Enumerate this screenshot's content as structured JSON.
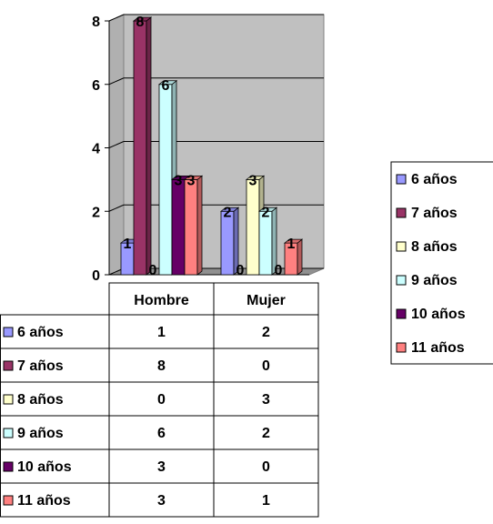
{
  "chart_data": {
    "type": "bar",
    "categories": [
      "Hombre",
      "Mujer"
    ],
    "series": [
      {
        "name": "6 años",
        "values": [
          1,
          2
        ],
        "color": "#9999FF"
      },
      {
        "name": "7 años",
        "values": [
          8,
          0
        ],
        "color": "#993366"
      },
      {
        "name": "8 años",
        "values": [
          0,
          3
        ],
        "color": "#FFFFCC"
      },
      {
        "name": "9 años",
        "values": [
          6,
          2
        ],
        "color": "#CCFFFF"
      },
      {
        "name": "10 años",
        "values": [
          3,
          0
        ],
        "color": "#660066"
      },
      {
        "name": "11 años",
        "values": [
          3,
          1
        ],
        "color": "#FF8080"
      }
    ],
    "yticks": [
      "0",
      "2",
      "4",
      "6",
      "8"
    ],
    "ylim": [
      0,
      8
    ],
    "grid": true,
    "legend_position": "right",
    "data_table": true,
    "plot_background": "#C0C0C0"
  }
}
